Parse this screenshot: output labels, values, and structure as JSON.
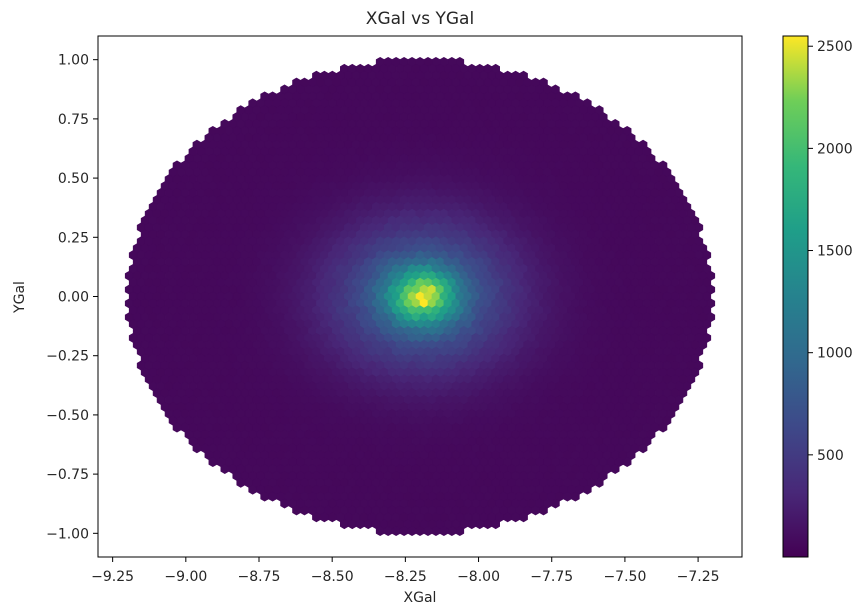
{
  "chart_data": {
    "type": "heatmap",
    "subtype": "hexbin",
    "title": "XGal vs YGal",
    "xlabel": "XGal",
    "ylabel": "YGal",
    "xlim": [
      -9.3,
      -7.1
    ],
    "ylim": [
      -1.1,
      1.1
    ],
    "x_ticks": [
      -9.25,
      -9.0,
      -8.75,
      -8.5,
      -8.25,
      -8.0,
      -7.75,
      -7.5,
      -7.25
    ],
    "x_tick_labels": [
      "−9.25",
      "−9.00",
      "−8.75",
      "−8.50",
      "−8.25",
      "−8.00",
      "−7.75",
      "−7.50",
      "−7.25"
    ],
    "y_ticks": [
      1.0,
      0.75,
      0.5,
      0.25,
      0.0,
      -0.25,
      -0.5,
      -0.75,
      -1.0
    ],
    "y_tick_labels": [
      "1.00",
      "0.75",
      "0.50",
      "0.25",
      "0.00",
      "−0.25",
      "−0.50",
      "−0.75",
      "−1.00"
    ],
    "colorbar": {
      "colormap": "viridis",
      "range": [
        0,
        2550
      ],
      "ticks": [
        500,
        1000,
        1500,
        2000,
        2500
      ],
      "tick_labels": [
        "500",
        "1000",
        "1500",
        "2000",
        "2500"
      ]
    },
    "distribution": {
      "shape": "ellipse",
      "center": [
        -8.2,
        0.0
      ],
      "x_half_width": 1.0,
      "y_half_width": 1.0,
      "peak_location": [
        -8.19,
        0.0
      ],
      "peak_count": 2500,
      "edge_count": 60
    },
    "grid": false,
    "legend": "none"
  }
}
